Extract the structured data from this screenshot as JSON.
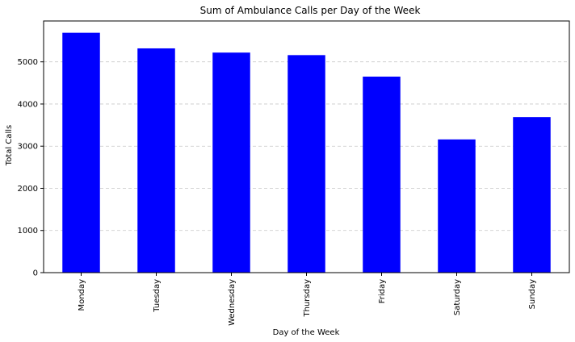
{
  "chart_data": {
    "type": "bar",
    "title": "Sum of Ambulance Calls per Day of the Week",
    "xlabel": "Day of the Week",
    "ylabel": "Total Calls",
    "categories": [
      "Monday",
      "Tuesday",
      "Wednesday",
      "Thursday",
      "Friday",
      "Saturday",
      "Sunday"
    ],
    "values": [
      5690,
      5320,
      5220,
      5160,
      4650,
      3160,
      3690
    ],
    "ylim": [
      0,
      5970
    ],
    "yticks": [
      0,
      1000,
      2000,
      3000,
      4000,
      5000
    ],
    "grid": "horizontal-dashed",
    "bar_color": "#0000ff",
    "legend": "none"
  }
}
